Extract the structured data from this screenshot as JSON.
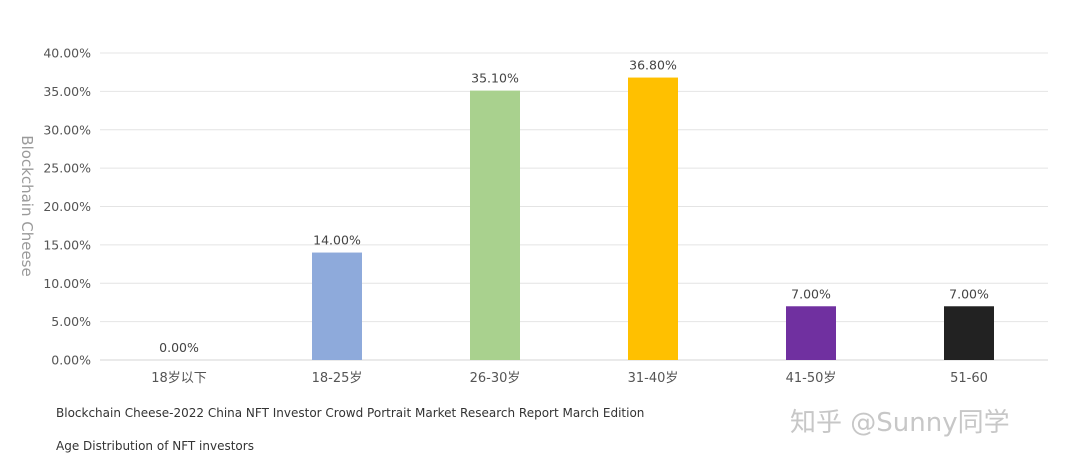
{
  "chart_data": {
    "type": "bar",
    "categories": [
      "18岁以下",
      "18-25岁",
      "26-30岁",
      "31-40岁",
      "41-50岁",
      "51-60"
    ],
    "values": [
      0.0,
      14.0,
      35.1,
      36.8,
      7.0,
      7.0
    ],
    "value_labels": [
      "0.00%",
      "14.00%",
      "35.10%",
      "36.80%",
      "7.00%",
      "7.00%"
    ],
    "bar_colors": [
      "#8eaadb",
      "#8eaadb",
      "#a9d18e",
      "#ffc000",
      "#7030a0",
      "#222222"
    ],
    "ylim": [
      0,
      40
    ],
    "yticks": [
      0,
      5,
      10,
      15,
      20,
      25,
      30,
      35,
      40
    ],
    "ytick_labels": [
      "0.00%",
      "5.00%",
      "10.00%",
      "15.00%",
      "20.00%",
      "25.00%",
      "30.00%",
      "35.00%",
      "40.00%"
    ],
    "ylabel": "Blockchain Cheese",
    "grid": true,
    "legend": "none"
  },
  "captions": {
    "source": "Blockchain Cheese-2022 China NFT Investor Crowd Portrait Market Research Report March Edition",
    "title": "Age Distribution of NFT investors"
  },
  "watermark": "知乎 @Sunny同学"
}
